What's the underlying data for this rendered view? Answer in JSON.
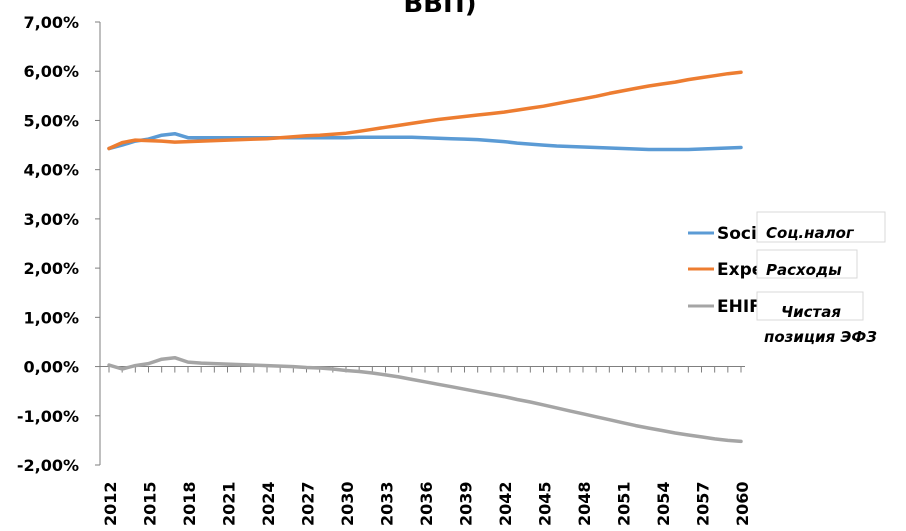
{
  "chart_data": {
    "type": "line",
    "title": "ВВП)",
    "ylim": [
      -2,
      7
    ],
    "y_ticks": [
      "7,00%",
      "6,00%",
      "5,00%",
      "4,00%",
      "3,00%",
      "2,00%",
      "1,00%",
      "0,00%",
      "-1,00%",
      "-2,00%"
    ],
    "x_tick_labels": [
      "2012",
      "2015",
      "2018",
      "2021",
      "2024",
      "2027",
      "2030",
      "2033",
      "2036",
      "2039",
      "2042",
      "2045",
      "2048",
      "2051",
      "2054",
      "2057",
      "2060"
    ],
    "x": [
      2012,
      2013,
      2014,
      2015,
      2016,
      2017,
      2018,
      2019,
      2020,
      2021,
      2022,
      2023,
      2024,
      2025,
      2026,
      2027,
      2028,
      2029,
      2030,
      2031,
      2032,
      2033,
      2034,
      2035,
      2036,
      2037,
      2038,
      2039,
      2040,
      2041,
      2042,
      2043,
      2044,
      2045,
      2046,
      2047,
      2048,
      2049,
      2050,
      2051,
      2052,
      2053,
      2054,
      2055,
      2056,
      2057,
      2058,
      2059,
      2060
    ],
    "series": [
      {
        "name": "Soci",
        "color": "#5B9BD5",
        "values": [
          4.43,
          4.5,
          4.58,
          4.62,
          4.7,
          4.73,
          4.65,
          4.65,
          4.65,
          4.65,
          4.65,
          4.65,
          4.65,
          4.65,
          4.65,
          4.65,
          4.65,
          4.65,
          4.65,
          4.66,
          4.66,
          4.66,
          4.66,
          4.66,
          4.65,
          4.64,
          4.63,
          4.62,
          4.61,
          4.59,
          4.57,
          4.54,
          4.52,
          4.5,
          4.48,
          4.47,
          4.46,
          4.45,
          4.44,
          4.43,
          4.42,
          4.41,
          4.41,
          4.41,
          4.41,
          4.42,
          4.43,
          4.44,
          4.45
        ]
      },
      {
        "name": "Expe",
        "color": "#ED7D31",
        "values": [
          4.43,
          4.55,
          4.6,
          4.59,
          4.58,
          4.56,
          4.57,
          4.58,
          4.59,
          4.6,
          4.61,
          4.62,
          4.63,
          4.65,
          4.67,
          4.69,
          4.7,
          4.72,
          4.74,
          4.78,
          4.82,
          4.86,
          4.9,
          4.94,
          4.98,
          5.02,
          5.05,
          5.08,
          5.11,
          5.14,
          5.17,
          5.21,
          5.25,
          5.29,
          5.34,
          5.39,
          5.44,
          5.49,
          5.55,
          5.6,
          5.65,
          5.7,
          5.74,
          5.78,
          5.83,
          5.87,
          5.91,
          5.95,
          5.98
        ]
      },
      {
        "name": "EHIF",
        "color": "#A5A5A5",
        "values": [
          0.03,
          -0.05,
          0.02,
          0.06,
          0.15,
          0.18,
          0.09,
          0.07,
          0.06,
          0.05,
          0.04,
          0.03,
          0.02,
          0.01,
          0.0,
          -0.02,
          -0.03,
          -0.05,
          -0.08,
          -0.1,
          -0.13,
          -0.17,
          -0.21,
          -0.26,
          -0.31,
          -0.36,
          -0.41,
          -0.46,
          -0.51,
          -0.56,
          -0.61,
          -0.67,
          -0.72,
          -0.78,
          -0.84,
          -0.9,
          -0.96,
          -1.02,
          -1.08,
          -1.14,
          -1.2,
          -1.25,
          -1.3,
          -1.35,
          -1.39,
          -1.43,
          -1.47,
          -1.5,
          -1.52
        ]
      }
    ],
    "legend": {
      "placement": "right"
    },
    "overlay_labels": [
      "Соц.налог",
      "Расходы",
      "Чистая",
      "позиция ЭФЗ"
    ]
  }
}
